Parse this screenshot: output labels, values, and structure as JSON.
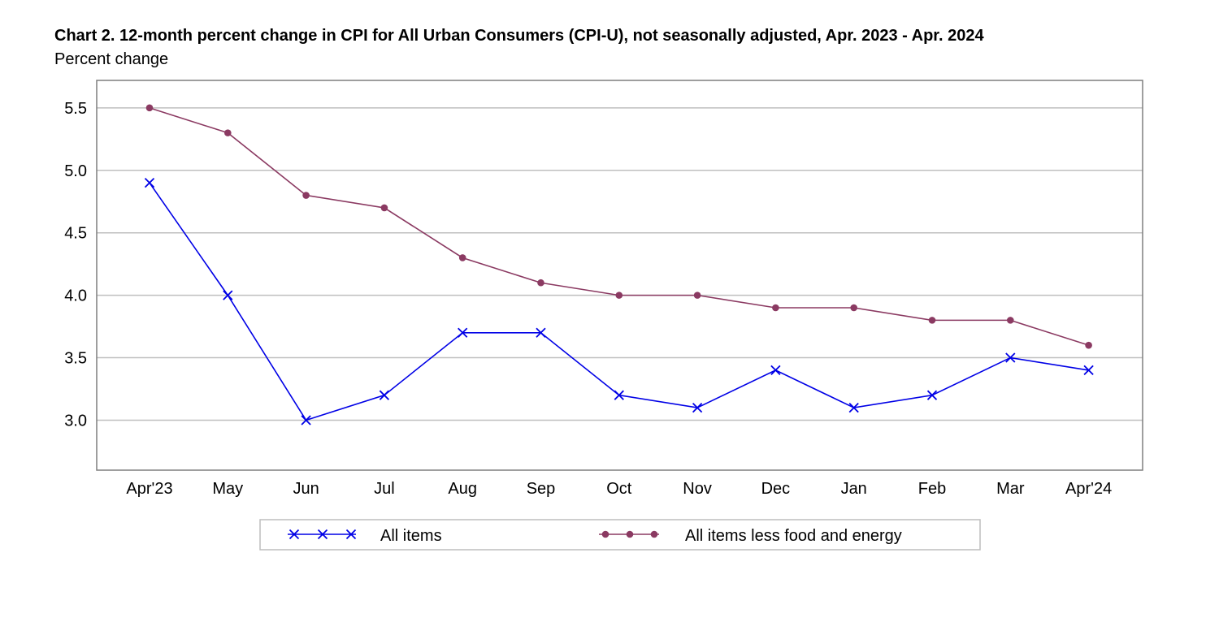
{
  "chart_data": {
    "type": "line",
    "title": "Chart 2. 12-month percent change in CPI for All Urban Consumers (CPI-U), not seasonally adjusted, Apr. 2023 - Apr. 2024",
    "ylabel": "Percent change",
    "xlabel": "",
    "categories": [
      "Apr'23",
      "May",
      "Jun",
      "Jul",
      "Aug",
      "Sep",
      "Oct",
      "Nov",
      "Dec",
      "Jan",
      "Feb",
      "Mar",
      "Apr'24"
    ],
    "ylim": [
      2.6,
      5.72
    ],
    "yticks": [
      "5.5",
      "5.0",
      "4.5",
      "4.0",
      "3.5",
      "3.0"
    ],
    "grid": true,
    "legend_position": "bottom",
    "series": [
      {
        "name": "All items",
        "marker": "x",
        "color": "#0000e6",
        "values": [
          4.9,
          4.0,
          3.0,
          3.2,
          3.7,
          3.7,
          3.2,
          3.1,
          3.4,
          3.1,
          3.2,
          3.5,
          3.4
        ]
      },
      {
        "name": "All items less food and energy",
        "marker": "circle",
        "color": "#8b3a62",
        "values": [
          5.5,
          5.3,
          4.8,
          4.7,
          4.3,
          4.1,
          4.0,
          4.0,
          3.9,
          3.9,
          3.8,
          3.8,
          3.6
        ]
      }
    ]
  }
}
